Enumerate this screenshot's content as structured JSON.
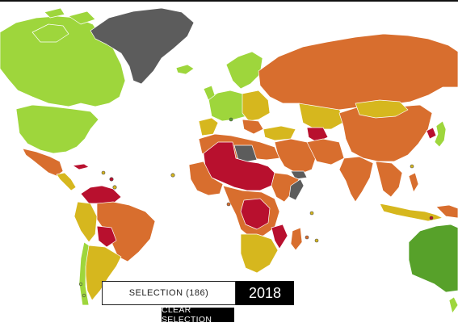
{
  "selection": {
    "label": "SELECTION (186)"
  },
  "year": {
    "value": "2018"
  },
  "actions": {
    "clear_label": "CLEAR SELECTION"
  },
  "colors": {
    "ocean": "#ffffff",
    "very_high": "#9ed63c",
    "high": "#57a12a",
    "moderate": "#d6b71e",
    "low": "#d86e2e",
    "very_low": "#b8102e",
    "no_data": "#5c5c5c",
    "border": "#ffffff"
  }
}
